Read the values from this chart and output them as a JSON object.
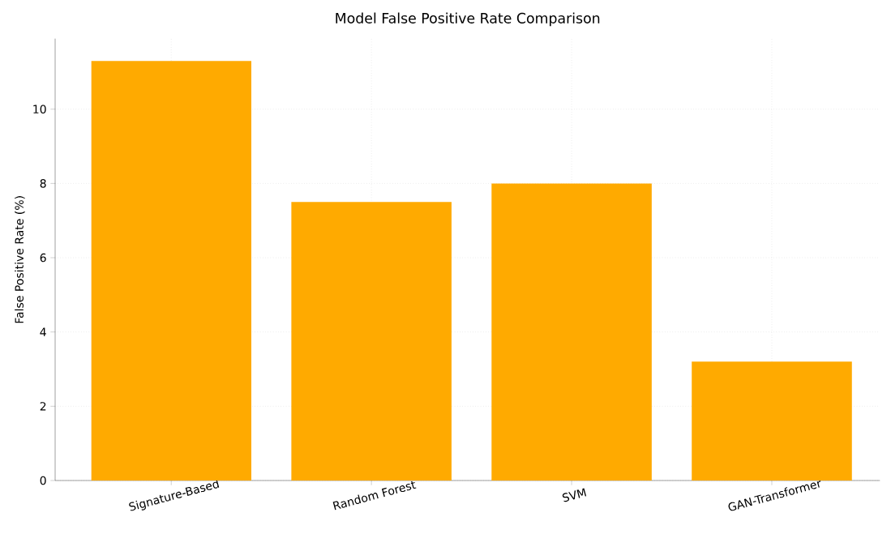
{
  "chart_data": {
    "type": "bar",
    "title": "Model False Positive Rate Comparison",
    "ylabel": "False Positive Rate (%)",
    "categories": [
      "Signature-Based",
      "Random Forest",
      "SVM",
      "GAN-Transformer"
    ],
    "values": [
      11.3,
      7.5,
      8.0,
      3.2
    ],
    "color": "#ffaa00",
    "ylim": [
      0,
      11.9
    ],
    "yticks": [
      0,
      2,
      4,
      6,
      8,
      10
    ],
    "grid": true
  }
}
